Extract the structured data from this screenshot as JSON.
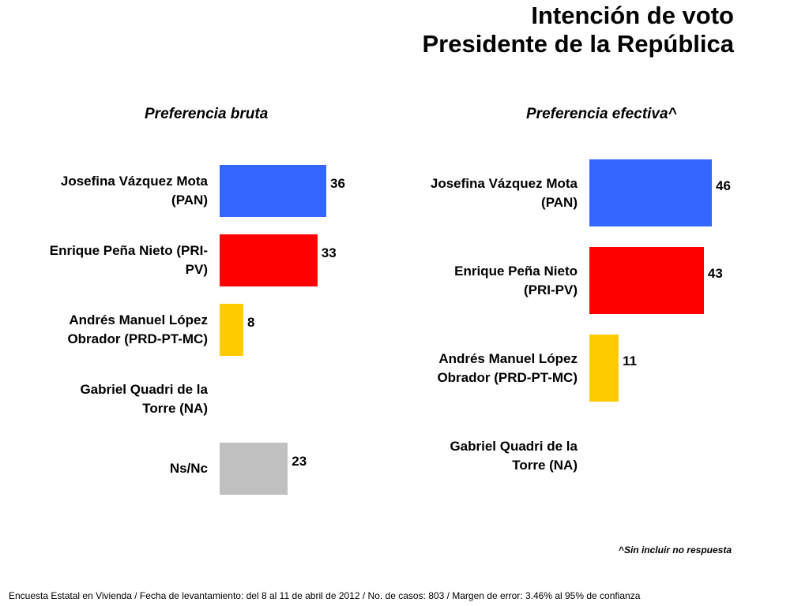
{
  "title_line1": "Intención de voto",
  "title_line2": "Presidente de la República",
  "chart_data": [
    {
      "type": "bar",
      "orientation": "horizontal",
      "title": "Preferencia bruta",
      "categories": [
        "Josefina Vázquez Mota (PAN)",
        "Enrique Peña Nieto (PRI-PV)",
        "Andrés Manuel López Obrador (PRD-PT-MC)",
        "Gabriel Quadri de la Torre (NA)",
        "Ns/Nc"
      ],
      "values": [
        36,
        33,
        8,
        null,
        23
      ],
      "labels": [
        "36",
        "33",
        "8",
        "",
        "23"
      ],
      "colors": [
        "#3366FF",
        "#FF0000",
        "#FFCC00",
        "#FFFFFF",
        "#C0C0C0"
      ]
    },
    {
      "type": "bar",
      "orientation": "horizontal",
      "title": "Preferencia efectiva^",
      "categories": [
        "Josefina Vázquez Mota (PAN)",
        "Enrique Peña Nieto (PRI-PV)",
        "Andrés Manuel López Obrador (PRD-PT-MC)",
        "Gabriel Quadri de la Torre (NA)"
      ],
      "values": [
        46,
        43,
        11,
        null
      ],
      "labels": [
        "46",
        "43",
        "11",
        ""
      ],
      "colors": [
        "#3366FF",
        "#FF0000",
        "#FFCC00",
        "#FFFFFF"
      ]
    }
  ],
  "footnote_caret": "^",
  "footnote_text": "Sin incluir no respuesta",
  "footer": "Encuesta Estatal en Vivienda / Fecha de levantamiento: del  8 al 11 de abril de 2012 / No. de casos: 803 / Margen de error: 3.46% al 95% de confianza"
}
